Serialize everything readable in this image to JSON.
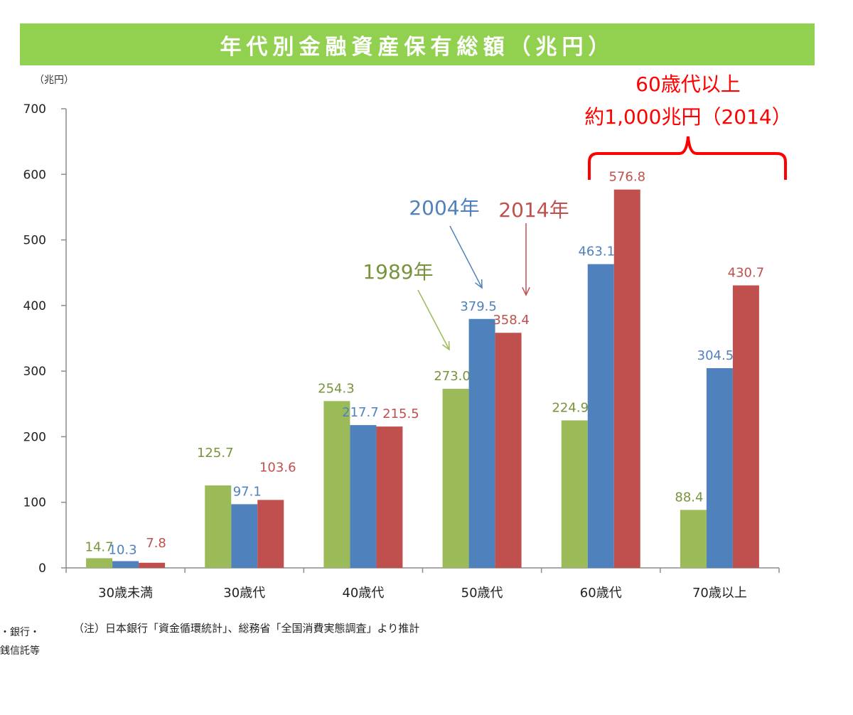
{
  "title": "年代別金融資産保有総額（兆円）",
  "chart_data": {
    "type": "bar",
    "title": "年代別金融資産保有総額（兆円）",
    "ylabel": "（兆円）",
    "ylim": [
      0,
      700
    ],
    "yticks": [
      "0",
      "100",
      "200",
      "300",
      "400",
      "500",
      "600",
      "700"
    ],
    "categories": [
      "30歳未満",
      "30歳代",
      "40歳代",
      "50歳代",
      "60歳代",
      "70歳以上"
    ],
    "series": [
      {
        "name": "1989年",
        "color": "#9bbb59",
        "values": [
          14.7,
          125.7,
          254.3,
          273.0,
          224.9,
          88.4
        ],
        "labels": [
          "14.7",
          "125.7",
          "254.3",
          "273.0",
          "224.9",
          "88.4"
        ]
      },
      {
        "name": "2004年",
        "color": "#4f81bd",
        "values": [
          10.3,
          97.1,
          217.7,
          379.5,
          463.1,
          304.5
        ],
        "labels": [
          "10.3",
          "97.1",
          "217.7",
          "379.5",
          "463.1",
          "304.5"
        ]
      },
      {
        "name": "2014年",
        "color": "#c0504d",
        "values": [
          7.8,
          103.6,
          215.5,
          358.4,
          576.8,
          430.7
        ],
        "labels": [
          "7.8",
          "103.6",
          "215.5",
          "358.4",
          "576.8",
          "430.7"
        ]
      }
    ],
    "label_colors": [
      "#77933c",
      "#4f81bd",
      "#c0504d"
    ],
    "annotation": {
      "line1": "60歳代以上",
      "line2": "約1,000兆円（2014）",
      "color": "#ff0000"
    }
  },
  "note": "（注）日本銀行「資金循環統計」、総務省「全国消費実態調査」より推計",
  "side_note_1": "局・銀行・",
  "side_note_2": "金銭信託等"
}
